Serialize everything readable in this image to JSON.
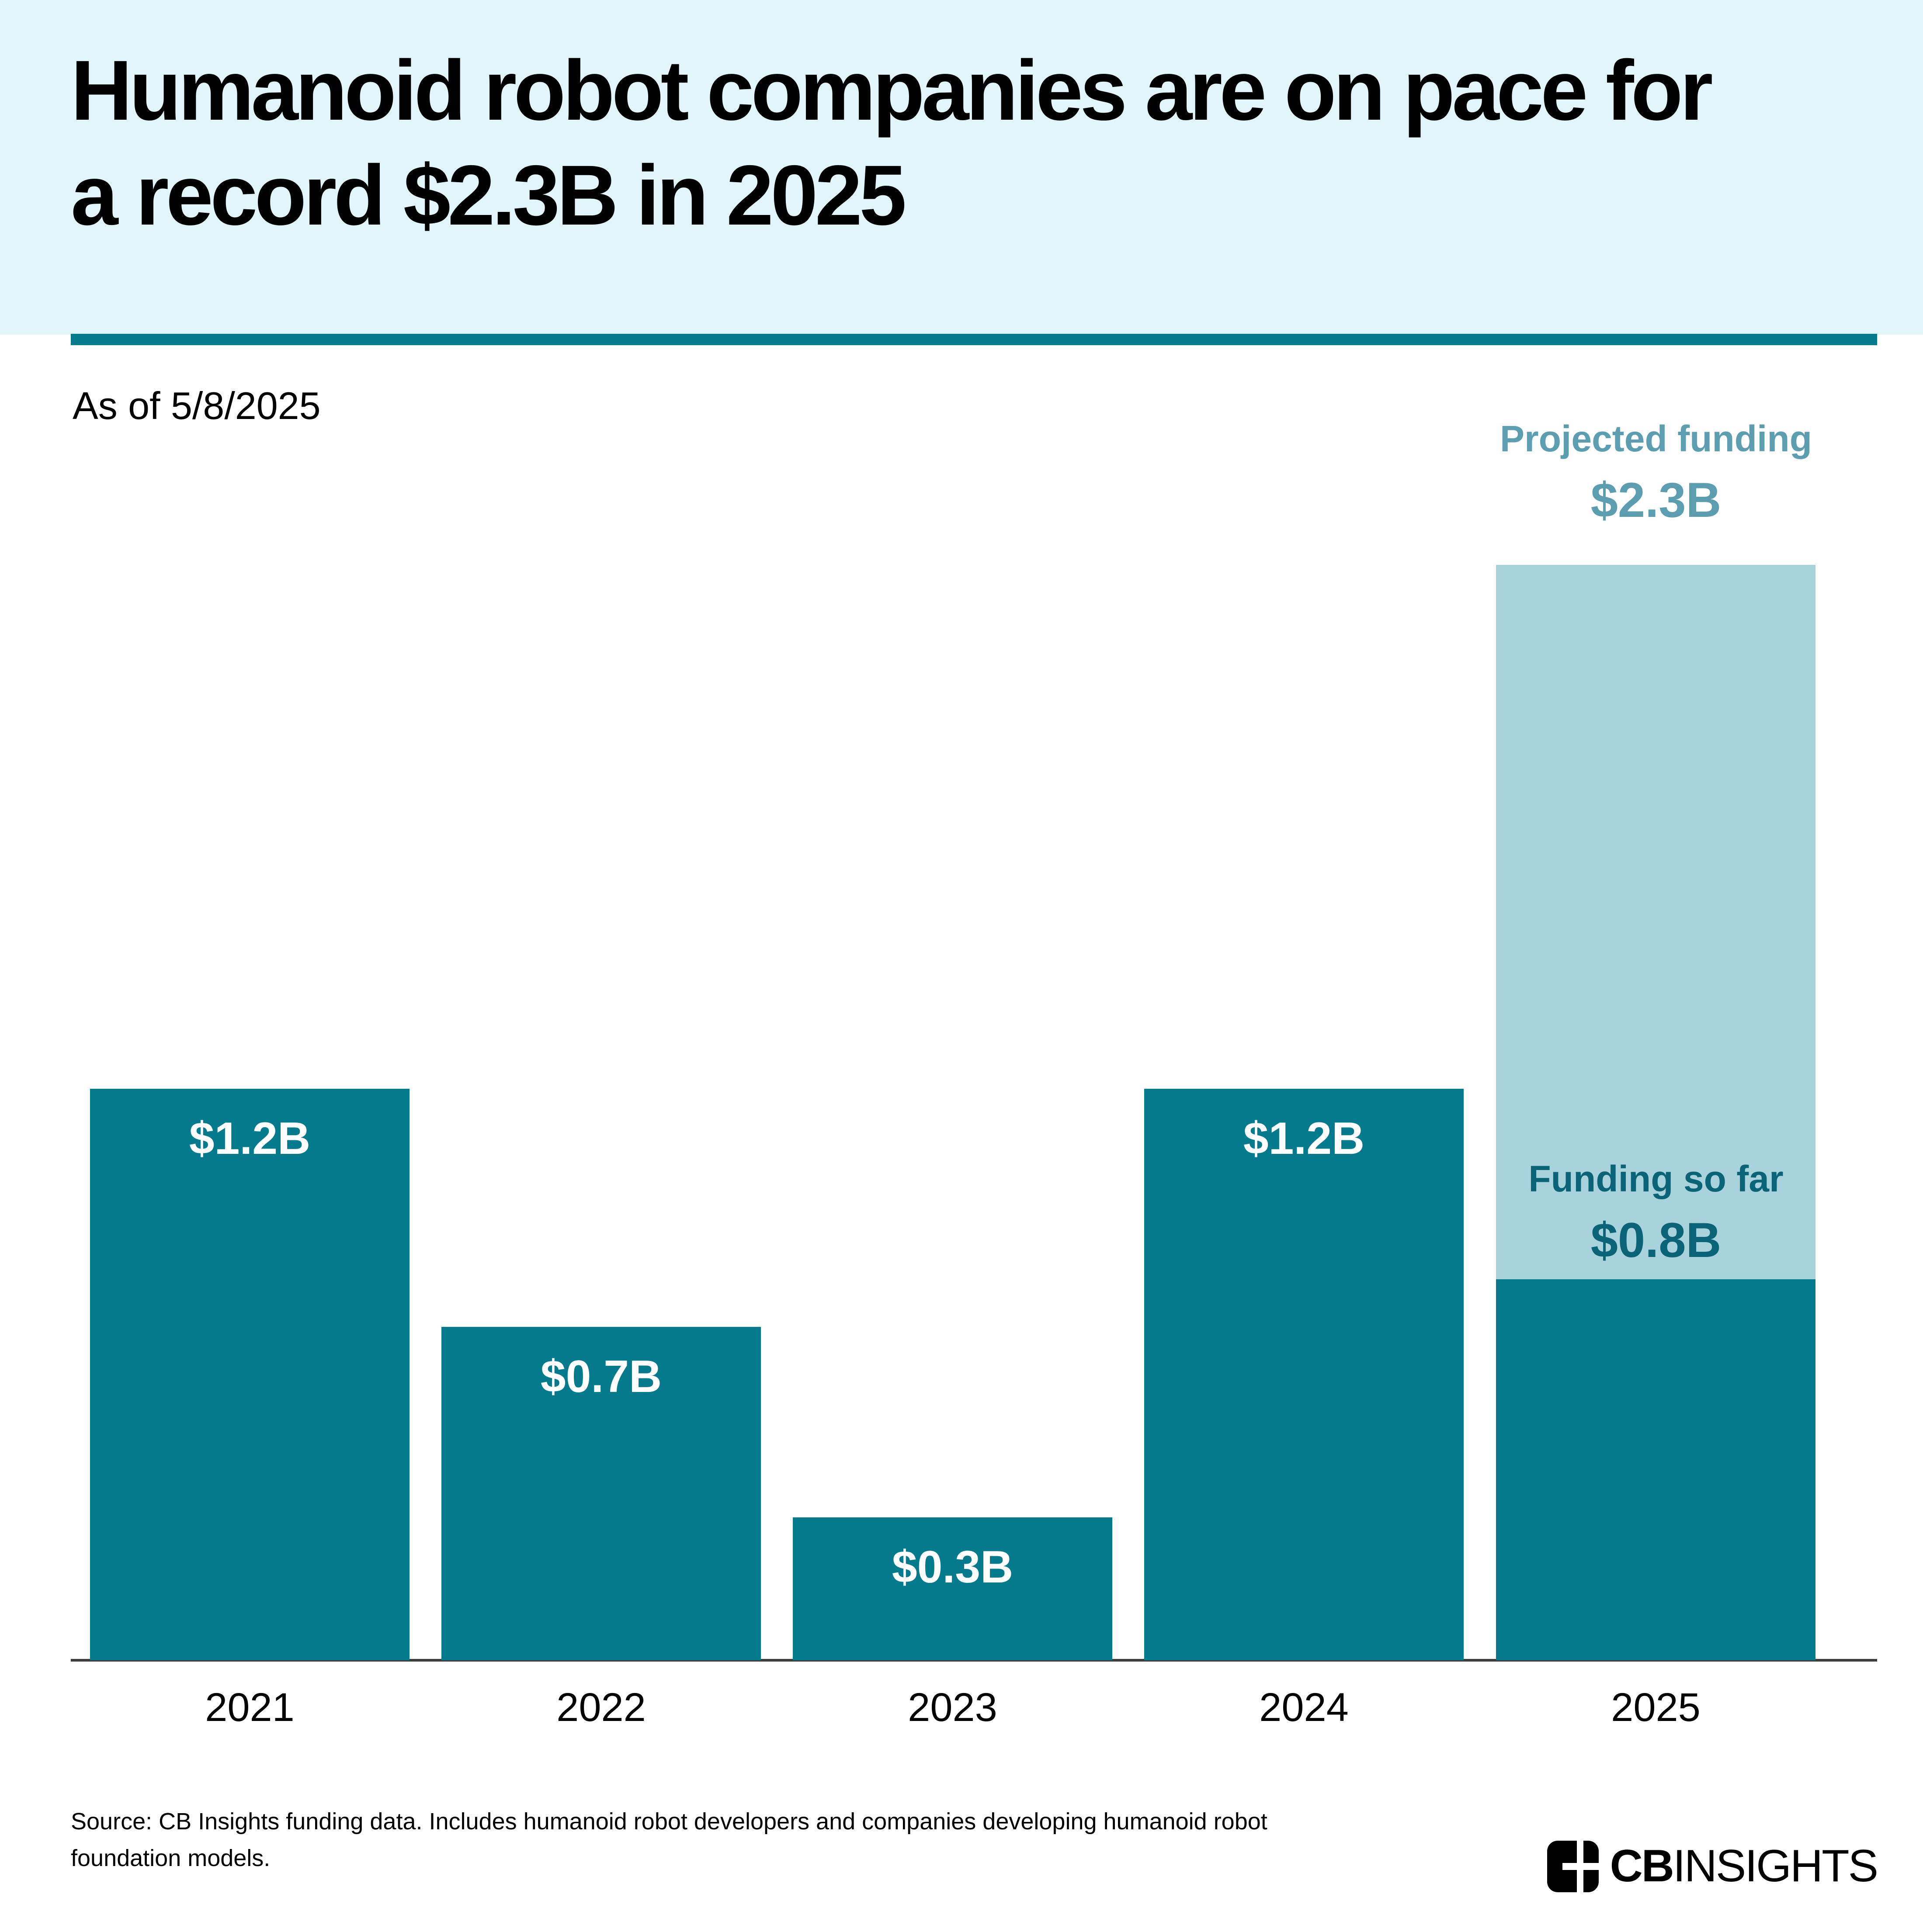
{
  "header": {
    "title_line1": "Humanoid robot companies are on pace for",
    "title_line2": "a record $2.3B in 2025"
  },
  "as_of": "As of 5/8/2025",
  "chart_data": {
    "type": "bar",
    "title": "Humanoid robot companies are on pace for a record $2.3B in 2025",
    "as_of": "As of 5/8/2025",
    "unit": "USD billions",
    "categories": [
      "2021",
      "2022",
      "2023",
      "2024",
      "2025"
    ],
    "series": [
      {
        "name": "Funding so far",
        "values": [
          1.2,
          0.7,
          0.3,
          1.2,
          0.8
        ],
        "color": "#047A8D"
      },
      {
        "name": "Projected additional funding",
        "values": [
          null,
          null,
          null,
          null,
          1.5
        ],
        "color": "#A8D3DD"
      }
    ],
    "bar_value_labels": [
      "$1.2B",
      "$0.7B",
      "$0.3B",
      "$1.2B",
      null
    ],
    "projected_total_2025": 2.3,
    "annotations": {
      "projected": {
        "label": "Projected funding",
        "value": "$2.3B"
      },
      "funding_so_far": {
        "label": "Funding so far",
        "value": "$0.8B"
      }
    },
    "ylim": [
      0,
      2.3
    ],
    "grid": false,
    "legend": false
  },
  "colors": {
    "header_background": "#E1F5FA",
    "teal_bar": "#047A8D",
    "light_blue_bar": "#A8D3DD",
    "divider": "#047A8D",
    "projected_text": "#5C9EAF",
    "funding_so_far_text": "#0A6377",
    "axis_line": "#3D3D3D",
    "bar_value_text": "#FFFFFF",
    "text": "#000000"
  },
  "footer": {
    "source": "Source: CB Insights funding data. Includes humanoid robot developers and companies developing humanoid robot foundation models.",
    "logo": {
      "icon": "cbinsights-logomark",
      "text_bold": "CB",
      "text_regular": "INSIGHTS"
    }
  }
}
